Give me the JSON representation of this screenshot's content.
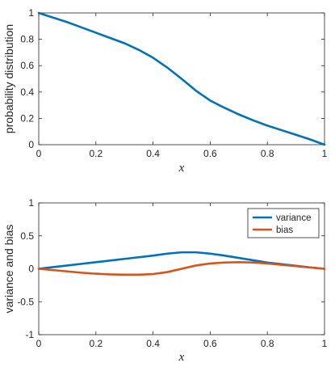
{
  "chart_data": [
    {
      "type": "line",
      "title": "",
      "xlabel": "x",
      "ylabel": "probability distribution",
      "xlim": [
        0,
        1
      ],
      "ylim": [
        0,
        1
      ],
      "xticks": [
        0,
        0.2,
        0.4,
        0.6,
        0.8,
        1
      ],
      "xtick_labels": [
        "0",
        "0.2",
        "0.4",
        "0.6",
        "0.8",
        "1"
      ],
      "yticks": [
        0,
        0.2,
        0.4,
        0.6,
        0.8,
        1
      ],
      "ytick_labels": [
        "0",
        "0.2",
        "0.4",
        "0.6",
        "0.8",
        "1"
      ],
      "grid": false,
      "series": [
        {
          "color": "#0072BD",
          "x": [
            0,
            0.05,
            0.1,
            0.15,
            0.2,
            0.25,
            0.3,
            0.35,
            0.4,
            0.45,
            0.5,
            0.55,
            0.6,
            0.65,
            0.7,
            0.75,
            0.8,
            0.85,
            0.9,
            0.95,
            1
          ],
          "y": [
            1.0,
            0.965,
            0.93,
            0.89,
            0.85,
            0.81,
            0.77,
            0.72,
            0.66,
            0.585,
            0.5,
            0.41,
            0.335,
            0.28,
            0.23,
            0.185,
            0.145,
            0.11,
            0.075,
            0.04,
            0.0
          ]
        }
      ]
    },
    {
      "type": "line",
      "title": "",
      "xlabel": "x",
      "ylabel": "variance and bias",
      "xlim": [
        0,
        1
      ],
      "ylim": [
        -1,
        1
      ],
      "xticks": [
        0,
        0.2,
        0.4,
        0.6,
        0.8,
        1
      ],
      "xtick_labels": [
        "0",
        "0.2",
        "0.4",
        "0.6",
        "0.8",
        "1"
      ],
      "yticks": [
        -1,
        -0.5,
        0,
        0.5,
        1
      ],
      "ytick_labels": [
        "-1",
        "-0.5",
        "0",
        "0.5",
        "1"
      ],
      "grid": false,
      "legend_position": "top-right",
      "series": [
        {
          "name": "variance",
          "color": "#0072BD",
          "x": [
            0,
            0.05,
            0.1,
            0.15,
            0.2,
            0.25,
            0.3,
            0.35,
            0.4,
            0.45,
            0.5,
            0.55,
            0.6,
            0.65,
            0.7,
            0.75,
            0.8,
            0.85,
            0.9,
            0.95,
            1
          ],
          "y": [
            0.0,
            0.025,
            0.05,
            0.075,
            0.1,
            0.125,
            0.15,
            0.175,
            0.2,
            0.23,
            0.25,
            0.25,
            0.23,
            0.2,
            0.165,
            0.13,
            0.095,
            0.07,
            0.045,
            0.02,
            0.0
          ]
        },
        {
          "name": "bias",
          "color": "#D95319",
          "x": [
            0,
            0.05,
            0.1,
            0.15,
            0.2,
            0.25,
            0.3,
            0.35,
            0.4,
            0.45,
            0.5,
            0.55,
            0.6,
            0.65,
            0.7,
            0.75,
            0.8,
            0.85,
            0.9,
            0.95,
            1
          ],
          "y": [
            0.0,
            -0.02,
            -0.04,
            -0.06,
            -0.075,
            -0.085,
            -0.09,
            -0.09,
            -0.08,
            -0.05,
            0.0,
            0.05,
            0.08,
            0.095,
            0.1,
            0.095,
            0.08,
            0.06,
            0.04,
            0.02,
            0.0
          ]
        }
      ]
    }
  ]
}
